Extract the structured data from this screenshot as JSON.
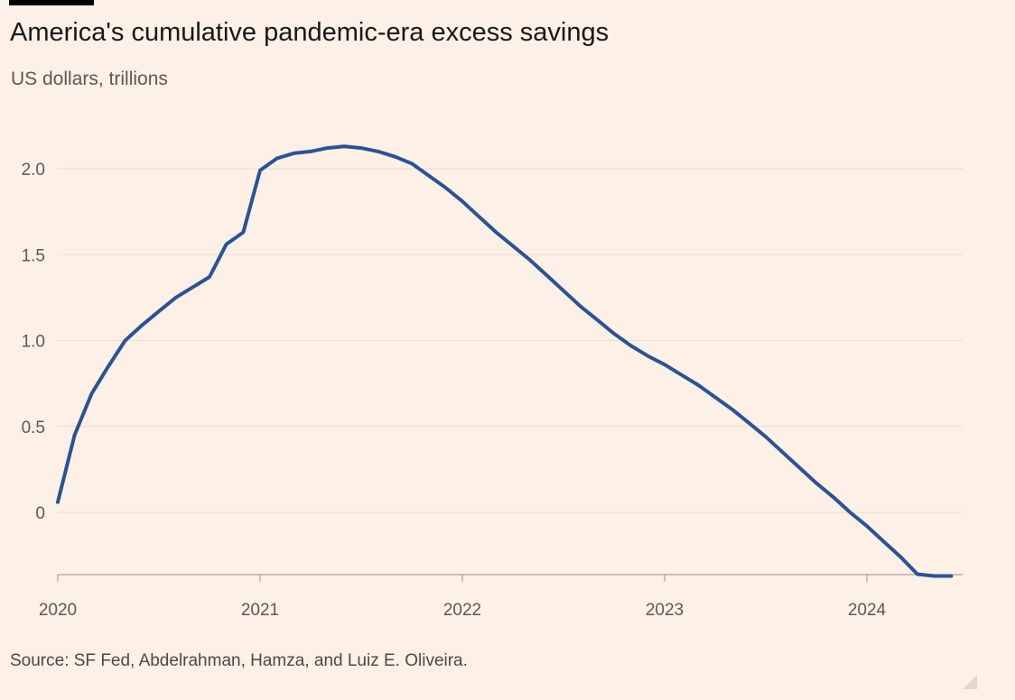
{
  "title": "America's cumulative pandemic-era excess savings",
  "subtitle": "US dollars, trillions",
  "source": "Source: SF Fed, Abdelrahman, Hamza, and Luiz E. Oliveira.",
  "colors": {
    "background": "#fdf0e6",
    "line": "#2b5394",
    "grid": "#e8ddd3",
    "axis": "#999090"
  },
  "chart_data": {
    "type": "line",
    "title": "America's cumulative pandemic-era excess savings",
    "subtitle": "US dollars, trillions",
    "xlabel": "",
    "ylabel": "",
    "x_ticks": [
      {
        "label": "2020",
        "value": 2020.0
      },
      {
        "label": "2021",
        "value": 2021.0
      },
      {
        "label": "2022",
        "value": 2022.0
      },
      {
        "label": "2023",
        "value": 2023.0
      },
      {
        "label": "2024",
        "value": 2024.0
      }
    ],
    "y_ticks": [
      {
        "label": "0",
        "value": 0
      },
      {
        "label": "0.5",
        "value": 0.5
      },
      {
        "label": "1.0",
        "value": 1.0
      },
      {
        "label": "1.5",
        "value": 1.5
      },
      {
        "label": "2.0",
        "value": 2.0
      }
    ],
    "xlim": [
      2020.0,
      2024.5
    ],
    "ylim": [
      -0.37,
      2.2
    ],
    "grid": true,
    "series": [
      {
        "x": [
          2020.0,
          2020.083,
          2020.167,
          2020.25,
          2020.333,
          2020.417,
          2020.5,
          2020.583,
          2020.667,
          2020.75,
          2020.833,
          2020.917,
          2021.0,
          2021.083,
          2021.167,
          2021.25,
          2021.333,
          2021.417,
          2021.5,
          2021.583,
          2021.667,
          2021.75,
          2021.833,
          2021.917,
          2022.0,
          2022.083,
          2022.167,
          2022.25,
          2022.333,
          2022.417,
          2022.5,
          2022.583,
          2022.667,
          2022.75,
          2022.833,
          2022.917,
          2023.0,
          2023.083,
          2023.167,
          2023.25,
          2023.333,
          2023.417,
          2023.5,
          2023.583,
          2023.667,
          2023.75,
          2023.833,
          2023.917,
          2024.0,
          2024.083,
          2024.167,
          2024.25,
          2024.333,
          2024.417
        ],
        "values": [
          0.06,
          0.45,
          0.69,
          0.85,
          1.0,
          1.09,
          1.17,
          1.25,
          1.31,
          1.37,
          1.56,
          1.63,
          1.99,
          2.06,
          2.09,
          2.1,
          2.12,
          2.13,
          2.12,
          2.1,
          2.07,
          2.03,
          1.96,
          1.89,
          1.81,
          1.72,
          1.63,
          1.55,
          1.47,
          1.38,
          1.29,
          1.2,
          1.12,
          1.04,
          0.97,
          0.91,
          0.86,
          0.8,
          0.74,
          0.67,
          0.6,
          0.52,
          0.44,
          0.35,
          0.26,
          0.17,
          0.09,
          0.0,
          -0.08,
          -0.17,
          -0.26,
          -0.36,
          -0.37,
          -0.37
        ]
      }
    ]
  }
}
